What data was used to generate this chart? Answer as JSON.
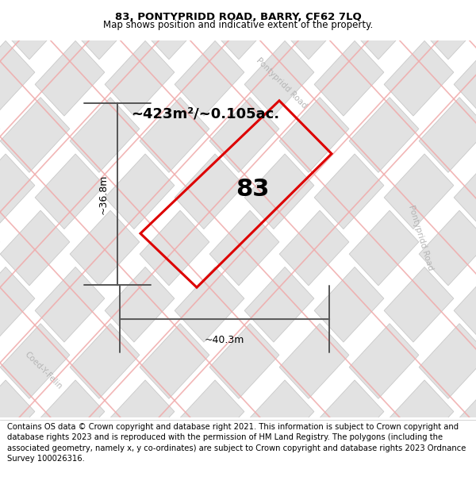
{
  "title": "83, PONTYPRIDD ROAD, BARRY, CF62 7LQ",
  "subtitle": "Map shows position and indicative extent of the property.",
  "footer": "Contains OS data © Crown copyright and database right 2021. This information is subject to Crown copyright and database rights 2023 and is reproduced with the permission of HM Land Registry. The polygons (including the associated geometry, namely x, y co-ordinates) are subject to Crown copyright and database rights 2023 Ordnance Survey 100026316.",
  "area_label": "~423m²/~0.105ac.",
  "width_label": "~40.3m",
  "height_label": "~36.8m",
  "plot_number": "83",
  "title_fontsize": 9.5,
  "subtitle_fontsize": 8.5,
  "footer_fontsize": 7.2,
  "area_fontsize": 13,
  "plot_num_fontsize": 22,
  "dim_fontsize": 9,
  "map_bg": "#f5f5f5",
  "block_fill": "#e2e2e2",
  "block_edge": "#c8c8c8",
  "road_line_color": "#f0aaaa",
  "road_label_color": "#b0b0b0",
  "plot_edge_color": "#dd0000",
  "dim_color": "#555555",
  "text_color": "#000000",
  "title_bg": "#ffffff",
  "footer_bg": "#ffffff"
}
